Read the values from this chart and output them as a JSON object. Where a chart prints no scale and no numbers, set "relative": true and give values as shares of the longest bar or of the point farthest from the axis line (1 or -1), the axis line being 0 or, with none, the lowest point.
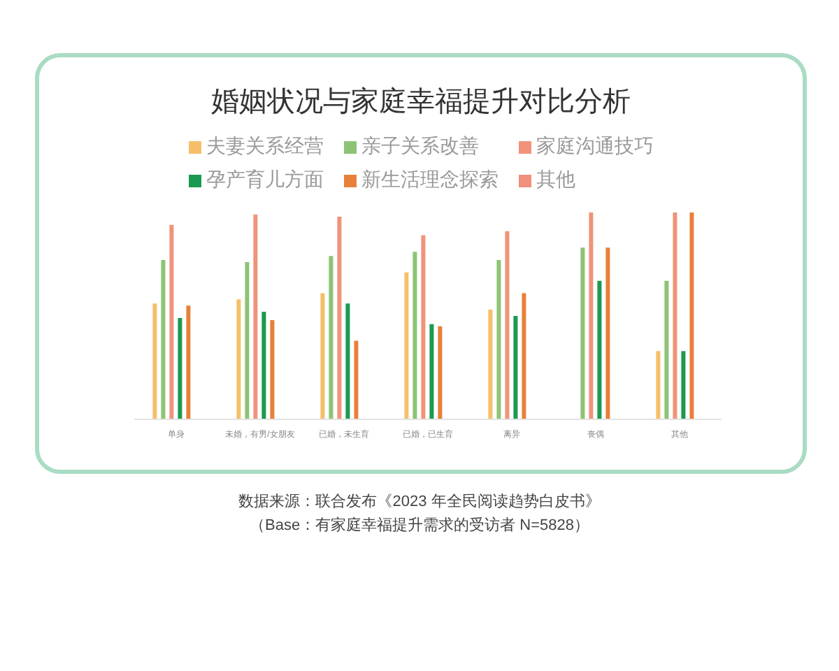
{
  "chart_data": {
    "type": "bar",
    "title": "婚姻状况与家庭幸福提升对比分析",
    "relative": true,
    "legend": "top",
    "categories": [
      "单身",
      "未婚，有男/女朋友",
      "已婚，未生育",
      "已婚，已生育",
      "离异",
      "丧偶",
      "其他"
    ],
    "series": [
      {
        "name": "夫妻关系经营",
        "color": "#f5bf6a",
        "values": [
          0.56,
          0.58,
          0.61,
          0.71,
          0.53,
          null,
          0.33
        ]
      },
      {
        "name": "亲子关系改善",
        "color": "#8cc474",
        "values": [
          0.77,
          0.76,
          0.79,
          0.81,
          0.77,
          0.83,
          0.67
        ]
      },
      {
        "name": "家庭沟通技巧",
        "color": "#f0937a",
        "values": [
          0.94,
          0.99,
          0.98,
          0.89,
          0.91,
          1,
          1
        ]
      },
      {
        "name": "孕产育儿方面",
        "color": "#1a9a50",
        "values": [
          0.49,
          0.52,
          0.56,
          0.46,
          0.5,
          0.67,
          0.33
        ]
      },
      {
        "name": "新生活理念探索",
        "color": "#e8803a",
        "values": [
          0.55,
          0.48,
          0.38,
          0.45,
          0.61,
          0.83,
          1
        ]
      },
      {
        "name": "其他",
        "color": "#ef8f7c",
        "values": [
          null,
          null,
          null,
          null,
          null,
          null,
          null
        ]
      }
    ],
    "annotations": [
      "数据来源：联合发布《2023 年全民阅读趋势白皮书》",
      "（Base：有家庭幸福提升需求的受访者 N=5828）"
    ]
  }
}
